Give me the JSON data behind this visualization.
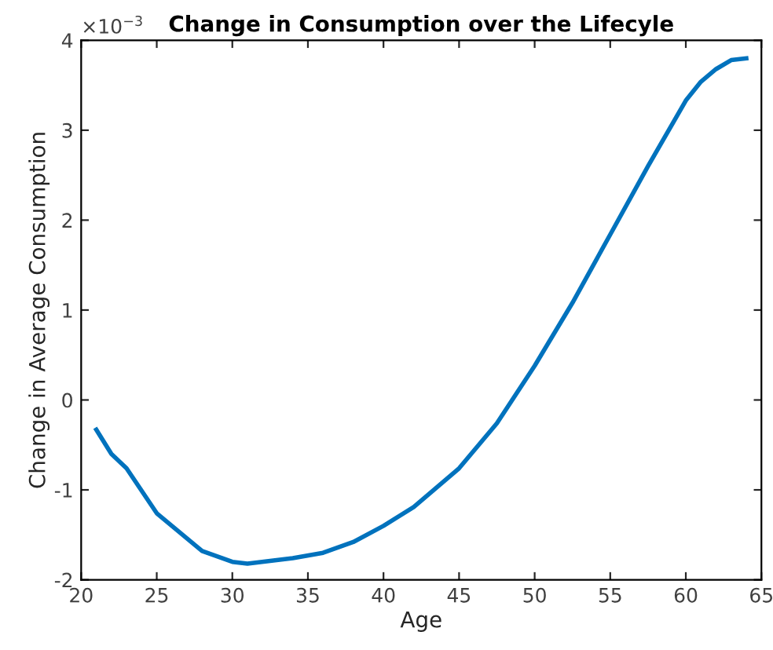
{
  "chart_data": {
    "type": "line",
    "title": "Change in Consumption over the Lifecyle",
    "xlabel": "Age",
    "ylabel": "Change in Average Consumption",
    "annotations": [
      "×10$^{−3}$"
    ],
    "x": [
      21,
      22,
      23,
      25,
      28,
      30,
      31,
      34,
      36,
      38,
      40,
      42,
      45,
      47.5,
      50,
      52.5,
      55,
      57.5,
      60,
      61,
      62,
      63,
      64
    ],
    "series": [
      {
        "color": "#0072bd",
        "values": [
          -0.33,
          -0.6,
          -0.76,
          -1.26,
          -1.68,
          -1.8,
          -1.82,
          -1.76,
          -1.7,
          -1.58,
          -1.4,
          -1.19,
          -0.76,
          -0.26,
          0.38,
          1.08,
          1.84,
          2.6,
          3.33,
          3.54,
          3.68,
          3.78,
          3.8
        ]
      }
    ],
    "xlim": [
      20,
      65
    ],
    "xticks": [
      20,
      25,
      30,
      35,
      40,
      45,
      50,
      55,
      60,
      65
    ],
    "ylim": [
      -2,
      4
    ],
    "yticks": [
      -2,
      -1,
      0,
      1,
      2,
      3,
      4
    ],
    "grid": false,
    "legend": false,
    "marker": "none",
    "line_style": "solid"
  }
}
